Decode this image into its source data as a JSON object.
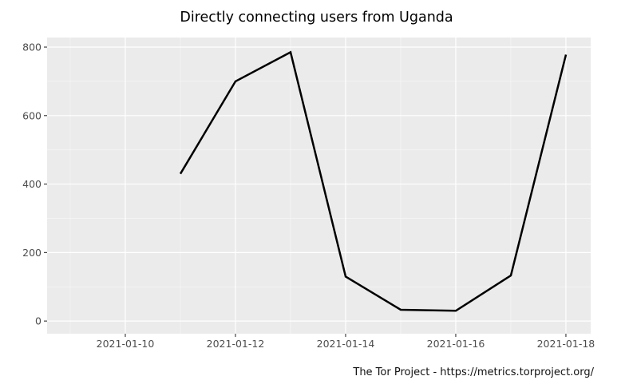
{
  "chart_data": {
    "type": "line",
    "title": "Directly connecting users from Uganda",
    "caption": "The Tor Project - https://metrics.torproject.org/",
    "xlabel": "",
    "ylabel": "",
    "legend": "none",
    "grid": "on",
    "points": [
      {
        "date": "2021-01-11",
        "value": 430
      },
      {
        "date": "2021-01-12",
        "value": 700
      },
      {
        "date": "2021-01-13",
        "value": 785
      },
      {
        "date": "2021-01-14",
        "value": 130
      },
      {
        "date": "2021-01-15",
        "value": 33
      },
      {
        "date": "2021-01-16",
        "value": 30
      },
      {
        "date": "2021-01-17",
        "value": 133
      },
      {
        "date": "2021-01-18",
        "value": 778
      }
    ],
    "x_tick_labels": [
      "2021-01-10",
      "2021-01-12",
      "2021-01-14",
      "2021-01-16",
      "2021-01-18"
    ],
    "x_tick_days": [
      10,
      12,
      14,
      16,
      18
    ],
    "x_minor_days": [
      9,
      11,
      13,
      15,
      17
    ],
    "y_ticks": [
      0,
      200,
      400,
      600,
      800
    ],
    "y_minor": [
      100,
      300,
      500,
      700
    ],
    "x_domain_days": [
      8.58,
      18.45
    ],
    "y_domain": [
      -37,
      828
    ],
    "colors": {
      "panel_bg": "#EBEBEB",
      "grid_major": "#FFFFFF",
      "grid_minor": "#F5F5F5",
      "line": "#000000",
      "tick_mark": "#333333",
      "tick_label": "#4D4D4D",
      "title": "#000000",
      "caption": "#111111"
    }
  }
}
